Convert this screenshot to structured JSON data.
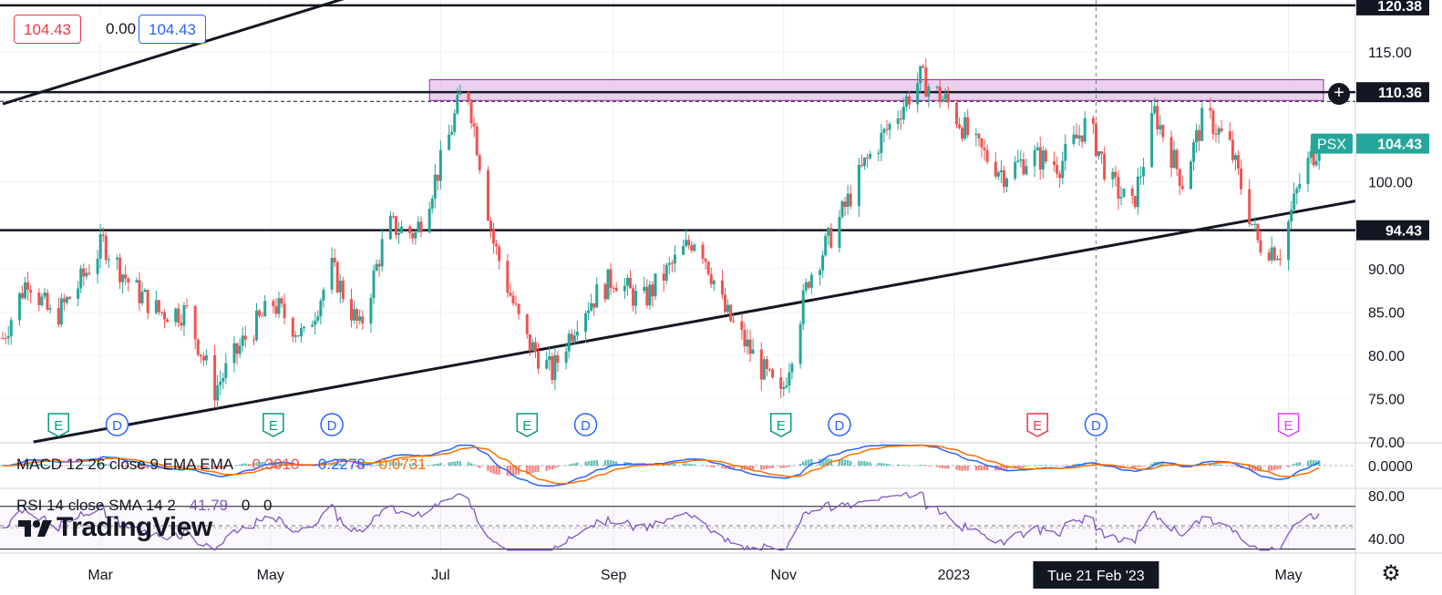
{
  "legend": {
    "open_value": "104.43",
    "change_value": "0.00",
    "close_value": "104.43"
  },
  "symbol_tag": "PSX",
  "price_axis": {
    "ticks": [
      "115.00",
      "100.00",
      "90.00",
      "85.00",
      "80.00",
      "75.00",
      "70.00"
    ],
    "labels": [
      {
        "text": "120.38",
        "color": "#131722",
        "fg": "#ffffff"
      },
      {
        "text": "110.36",
        "color": "#131722",
        "fg": "#ffffff"
      },
      {
        "text": "104.43",
        "color": "#26a69a",
        "fg": "#ffffff"
      },
      {
        "text": "94.43",
        "color": "#131722",
        "fg": "#ffffff"
      }
    ]
  },
  "time_axis": {
    "ticks": [
      "Mar",
      "May",
      "Jul",
      "Sep",
      "Nov",
      "2023",
      "May"
    ],
    "crosshair_label": "Tue 21 Feb '23"
  },
  "macd": {
    "label": "MACD 12 26 close 9 EMA EMA",
    "hist": "-0.3010",
    "macd": "-0.2278",
    "signal": "0.0731",
    "axis_tick": "0.0000"
  },
  "rsi": {
    "label": "RSI 14 close SMA 14 2",
    "value": "41.79",
    "v2": "0",
    "v3": "0",
    "axis_ticks": [
      "80.00",
      "40.00"
    ]
  },
  "events": [
    {
      "type": "E",
      "color": "#089981",
      "date": "Feb"
    },
    {
      "type": "D",
      "color": "#2962ff",
      "date": "Feb"
    },
    {
      "type": "E",
      "color": "#089981",
      "date": "May"
    },
    {
      "type": "D",
      "color": "#2962ff",
      "date": "May"
    },
    {
      "type": "E",
      "color": "#089981",
      "date": "Aug"
    },
    {
      "type": "D",
      "color": "#2962ff",
      "date": "Aug"
    },
    {
      "type": "E",
      "color": "#089981",
      "date": "Nov"
    },
    {
      "type": "D",
      "color": "#2962ff",
      "date": "Nov"
    },
    {
      "type": "E",
      "color": "#f23645",
      "date": "Feb"
    },
    {
      "type": "D",
      "color": "#2962ff",
      "date": "Feb"
    },
    {
      "type": "E",
      "color": "#e040fb",
      "date": "Apr"
    }
  ],
  "brand": "TradingView",
  "colors": {
    "up": "#26a69a",
    "down": "#ef5350",
    "zone": "#e1bee7",
    "zone_border": "#9c27b0",
    "macd_line": "#2962ff",
    "signal_line": "#ff6d00",
    "rsi_line": "#7e57c2"
  },
  "chart_data": {
    "type": "candlestick",
    "title": "",
    "ylim": [
      70,
      121
    ],
    "horizontal_levels": [
      120.38,
      110.36,
      94.43
    ],
    "resistance_zone": [
      109.4,
      111.8
    ],
    "x_range": [
      "2022-01-24",
      "2023-05-25"
    ],
    "channel_upper": [
      {
        "x": "2022-01-25",
        "y": 109
      },
      {
        "x": "2022-06-25",
        "y": 124
      }
    ],
    "channel_lower": [
      {
        "x": "2022-02-05",
        "y": 70
      },
      {
        "x": "2023-05-25",
        "y": 97.8
      }
    ],
    "close_path": [
      {
        "x": "2022-01-25",
        "y": 82
      },
      {
        "x": "2022-02-03",
        "y": 89
      },
      {
        "x": "2022-02-12",
        "y": 84
      },
      {
        "x": "2022-02-21",
        "y": 88
      },
      {
        "x": "2022-03-02",
        "y": 93
      },
      {
        "x": "2022-03-12",
        "y": 88
      },
      {
        "x": "2022-03-22",
        "y": 85
      },
      {
        "x": "2022-04-01",
        "y": 85
      },
      {
        "x": "2022-04-11",
        "y": 76
      },
      {
        "x": "2022-04-22",
        "y": 82
      },
      {
        "x": "2022-05-02",
        "y": 86
      },
      {
        "x": "2022-05-13",
        "y": 82
      },
      {
        "x": "2022-05-23",
        "y": 90
      },
      {
        "x": "2022-06-02",
        "y": 83
      },
      {
        "x": "2022-06-12",
        "y": 95
      },
      {
        "x": "2022-06-22",
        "y": 94
      },
      {
        "x": "2022-07-02",
        "y": 103
      },
      {
        "x": "2022-07-10",
        "y": 112
      },
      {
        "x": "2022-07-20",
        "y": 93
      },
      {
        "x": "2022-07-31",
        "y": 82
      },
      {
        "x": "2022-08-10",
        "y": 78
      },
      {
        "x": "2022-08-20",
        "y": 85
      },
      {
        "x": "2022-09-01",
        "y": 89
      },
      {
        "x": "2022-09-11",
        "y": 86
      },
      {
        "x": "2022-09-21",
        "y": 90
      },
      {
        "x": "2022-10-01",
        "y": 94
      },
      {
        "x": "2022-10-11",
        "y": 85
      },
      {
        "x": "2022-10-21",
        "y": 80
      },
      {
        "x": "2022-10-31",
        "y": 75
      },
      {
        "x": "2022-11-10",
        "y": 89
      },
      {
        "x": "2022-11-20",
        "y": 95
      },
      {
        "x": "2022-11-30",
        "y": 102
      },
      {
        "x": "2022-12-10",
        "y": 107
      },
      {
        "x": "2022-12-20",
        "y": 112
      },
      {
        "x": "2022-12-30",
        "y": 109
      },
      {
        "x": "2023-01-09",
        "y": 104
      },
      {
        "x": "2023-01-19",
        "y": 101
      },
      {
        "x": "2023-01-29",
        "y": 103
      },
      {
        "x": "2023-02-08",
        "y": 102
      },
      {
        "x": "2023-02-18",
        "y": 107
      },
      {
        "x": "2023-02-26",
        "y": 100
      },
      {
        "x": "2023-03-06",
        "y": 97
      },
      {
        "x": "2023-03-14",
        "y": 108
      },
      {
        "x": "2023-03-24",
        "y": 100
      },
      {
        "x": "2023-04-01",
        "y": 108
      },
      {
        "x": "2023-04-10",
        "y": 104
      },
      {
        "x": "2023-04-20",
        "y": 93
      },
      {
        "x": "2023-04-28",
        "y": 92
      },
      {
        "x": "2023-05-06",
        "y": 101
      },
      {
        "x": "2023-05-12",
        "y": 104.43
      }
    ],
    "macd_ylim": [
      -1.5,
      1.5
    ],
    "rsi_ylim": [
      28,
      86
    ],
    "rsi_levels": [
      70,
      50,
      30
    ]
  }
}
